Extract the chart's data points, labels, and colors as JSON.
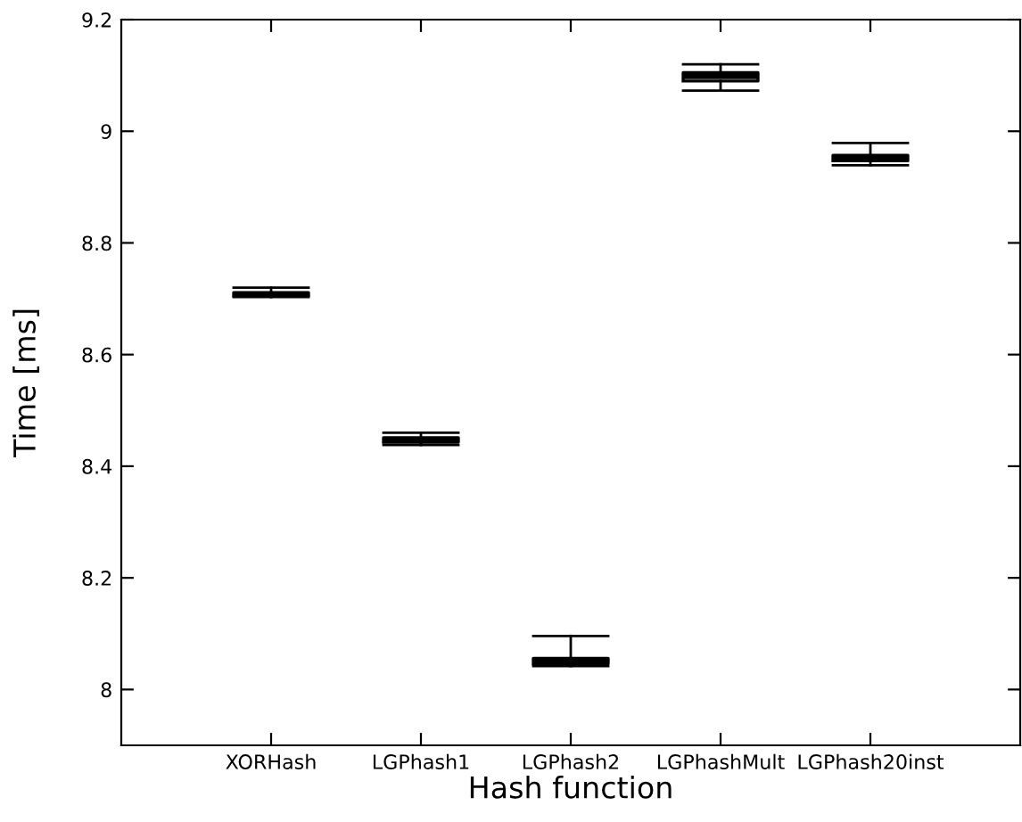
{
  "chart_data": {
    "type": "box",
    "xlabel": "Hash function",
    "ylabel": "Time [ms]",
    "categories": [
      "XORHash",
      "LGPhash1",
      "LGPhash2",
      "LGPhashMult",
      "LGPhash20inst"
    ],
    "boxes": [
      {
        "low": 8.703,
        "q1": 8.705,
        "median": 8.708,
        "q3": 8.711,
        "high": 8.72
      },
      {
        "low": 8.438,
        "q1": 8.443,
        "median": 8.447,
        "q3": 8.451,
        "high": 8.46
      },
      {
        "low": 8.042,
        "q1": 8.046,
        "median": 8.05,
        "q3": 8.056,
        "high": 8.096
      },
      {
        "low": 9.073,
        "q1": 9.09,
        "median": 9.098,
        "q3": 9.105,
        "high": 9.12
      },
      {
        "low": 8.939,
        "q1": 8.947,
        "median": 8.953,
        "q3": 8.957,
        "high": 8.979
      }
    ],
    "color": "#000000",
    "ylim": [
      7.9,
      9.2
    ],
    "yticks": [
      8,
      8.2,
      8.4,
      8.6,
      8.8,
      9,
      9.2
    ],
    "grid": false
  }
}
